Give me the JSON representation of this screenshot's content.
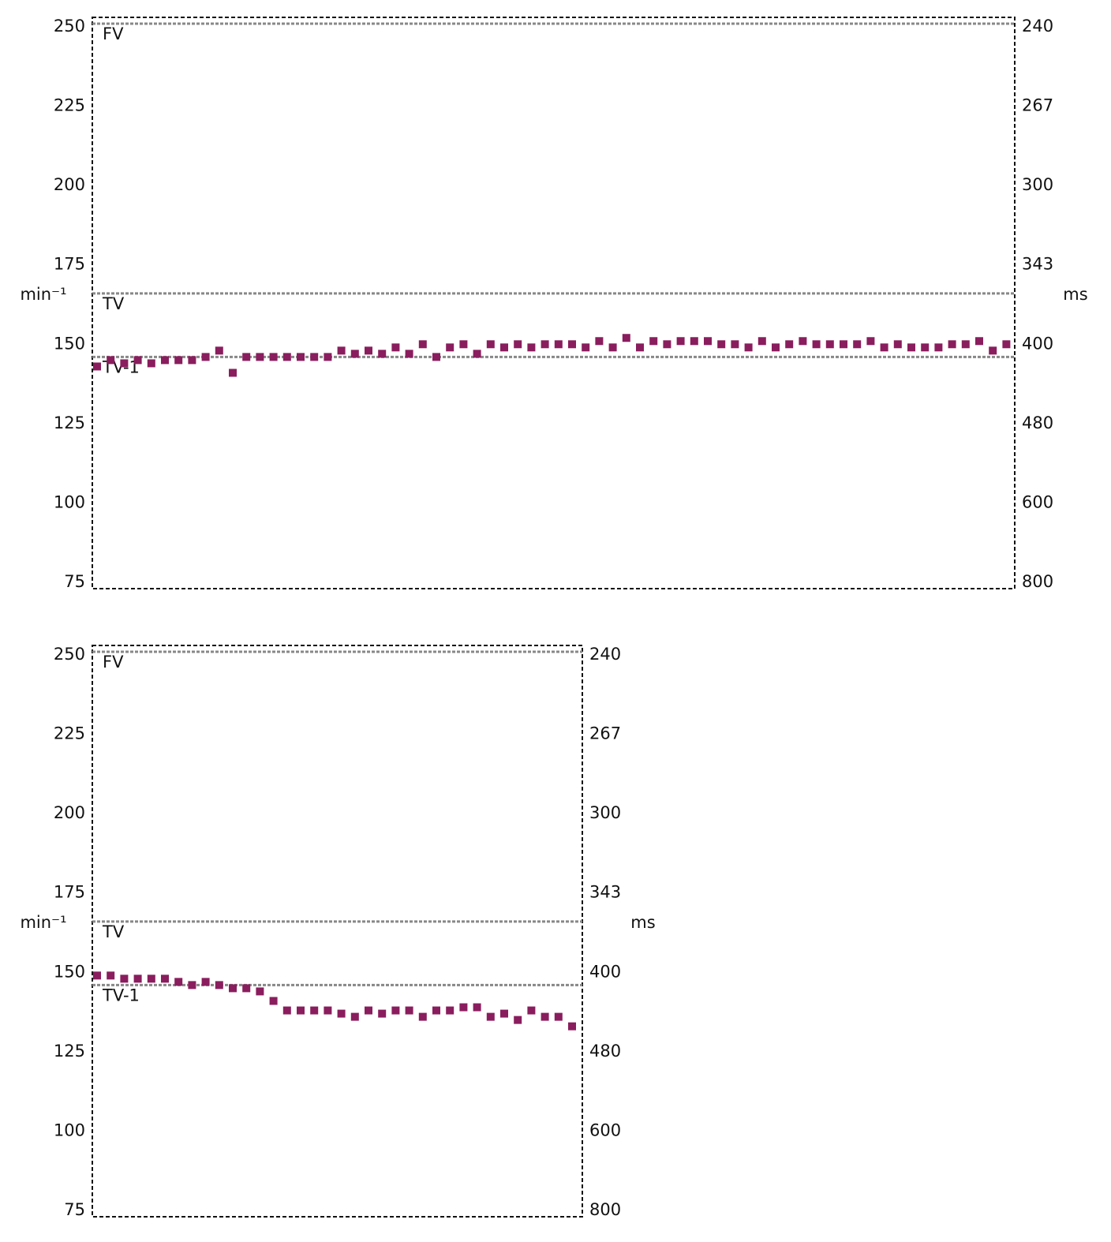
{
  "chart_data": [
    {
      "type": "scatter",
      "ylabel": "min⁻¹",
      "y2label": "ms",
      "color": "#8a1d5e",
      "ylim": [
        73,
        253
      ],
      "yticks": [
        75,
        100,
        125,
        150,
        175,
        200,
        225,
        250
      ],
      "y2lim": [
        821.92,
        237.15
      ],
      "y2scale": "reciprocal",
      "y2ticks": [
        240,
        {
          "value": 266.67,
          "label": "267"
        },
        300,
        {
          "value": 342.86,
          "label": "343"
        },
        400,
        480,
        600,
        800
      ],
      "thresholds": [
        {
          "label": "FV",
          "value": 251
        },
        {
          "label": "TV",
          "value": 166
        },
        {
          "label": "TV-1",
          "value": 146
        }
      ],
      "values": [
        143,
        145,
        144,
        145,
        144,
        145,
        145,
        145,
        146,
        148,
        141,
        146,
        146,
        146,
        146,
        146,
        146,
        146,
        148,
        147,
        148,
        147,
        149,
        147,
        150,
        146,
        149,
        150,
        147,
        150,
        149,
        150,
        149,
        150,
        150,
        150,
        149,
        151,
        149,
        152,
        149,
        151,
        150,
        151,
        151,
        151,
        150,
        150,
        149,
        151,
        149,
        150,
        151,
        150,
        150,
        150,
        150,
        151,
        149,
        150,
        149,
        149,
        149,
        150,
        150,
        151,
        148,
        150
      ]
    },
    {
      "type": "scatter",
      "ylabel": "min⁻¹",
      "y2label": "ms",
      "color": "#8a1d5e",
      "ylim": [
        73,
        253
      ],
      "yticks": [
        75,
        100,
        125,
        150,
        175,
        200,
        225,
        250
      ],
      "y2lim": [
        821.92,
        237.15
      ],
      "y2scale": "reciprocal",
      "y2ticks": [
        240,
        {
          "value": 266.67,
          "label": "267"
        },
        300,
        {
          "value": 342.86,
          "label": "343"
        },
        400,
        480,
        600,
        800
      ],
      "thresholds": [
        {
          "label": "FV",
          "value": 251
        },
        {
          "label": "TV",
          "value": 166
        },
        {
          "label": "TV-1",
          "value": 146
        }
      ],
      "values": [
        149,
        149,
        148,
        148,
        148,
        148,
        147,
        146,
        147,
        146,
        145,
        145,
        144,
        141,
        138,
        138,
        138,
        138,
        137,
        136,
        138,
        137,
        138,
        138,
        136,
        138,
        138,
        139,
        139,
        136,
        137,
        135,
        138,
        136,
        136,
        133
      ]
    }
  ]
}
